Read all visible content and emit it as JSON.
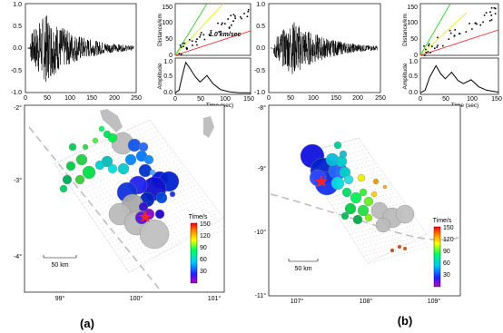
{
  "figure": {
    "panels": [
      {
        "label": "(a)",
        "waveform": {
          "xlim": [
            0,
            250
          ],
          "ylim": [
            -1.0,
            1.0
          ],
          "xticks": [
            "0",
            "50",
            "100",
            "150",
            "200",
            "250"
          ],
          "yticks": [
            "1.0",
            "0.5",
            "0.0",
            "-0.5",
            "-1.0"
          ]
        },
        "distance_plot": {
          "ylabel": "Distance/km",
          "xlim": [
            0,
            150
          ],
          "ylim": [
            0,
            160
          ],
          "yticks": [
            "150",
            "100",
            "50",
            "0"
          ],
          "annotation": "1.0 km/sec"
        },
        "amplitude_plot": {
          "ylabel": "Amplitude",
          "xlabel": "Time (sec)",
          "yticks": [
            "1.0",
            "0.5",
            "0.0"
          ],
          "xticks": [
            "0",
            "50",
            "100",
            "150"
          ]
        },
        "map": {
          "lat_ticks": [
            "-2°",
            "-3°",
            "-4°"
          ],
          "lon_ticks": [
            "99°",
            "100°",
            "101°"
          ],
          "scale": "50 km",
          "colorbar_title": "Time/s",
          "colorbar_ticks": [
            "150",
            "120",
            "90",
            "60",
            "30"
          ]
        }
      },
      {
        "label": "(b)",
        "waveform": {
          "xlim": [
            0,
            250
          ],
          "ylim": [
            -1.0,
            1.0
          ],
          "xticks": [
            "0",
            "50",
            "100",
            "150",
            "200",
            "250"
          ],
          "yticks": [
            "1.0",
            "0.5",
            "0.0",
            "-0.5",
            "-1.0"
          ]
        },
        "distance_plot": {
          "ylabel": "Distance/km",
          "xlim": [
            0,
            150
          ],
          "ylim": [
            0,
            160
          ],
          "yticks": [
            "150",
            "100",
            "50",
            "0"
          ]
        },
        "amplitude_plot": {
          "ylabel": "Amplitude",
          "xlabel": "Time (sec)",
          "yticks": [
            "1.0",
            "0.5",
            "0.0"
          ],
          "xticks": [
            "0",
            "50",
            "100",
            "150"
          ]
        },
        "map": {
          "lat_ticks": [
            "-8°",
            "-9°",
            "-10°",
            "-11°"
          ],
          "lon_ticks": [
            "107°",
            "108°",
            "109°"
          ],
          "scale": "50 km",
          "colorbar_title": "Time/s",
          "colorbar_ticks": [
            "150",
            "120",
            "90",
            "60",
            "30"
          ]
        }
      }
    ]
  }
}
